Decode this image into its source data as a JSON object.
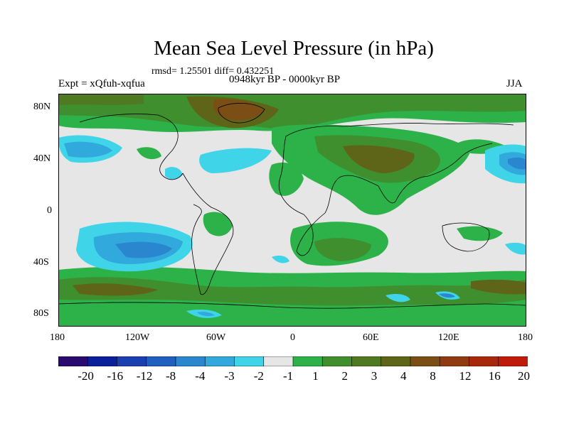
{
  "title": "Mean Sea Level Pressure (in hPa)",
  "stats": "rmsd= 1.25501 diff= 0.432251",
  "left_label": "Expt = xQfuh-xqfua",
  "center_label": "0948kyr BP - 0000kyr BP",
  "right_label": "JJA",
  "lat_ticks": [
    "80N",
    "40N",
    "0",
    "40S",
    "80S"
  ],
  "lon_ticks": [
    "180",
    "120W",
    "60W",
    "0",
    "60E",
    "120E",
    "180"
  ],
  "colorbar": {
    "colors": [
      "#2a0a6e",
      "#0c1f9a",
      "#1a3fb0",
      "#1e5fc0",
      "#2a86cf",
      "#32a9dd",
      "#40d4e8",
      "#e6e6e6",
      "#2db24a",
      "#3f8f2e",
      "#4f7a22",
      "#5e6418",
      "#7a4e14",
      "#8f3a10",
      "#a8280c",
      "#c01a0a"
    ],
    "labels": [
      "-20",
      "-16",
      "-12",
      "-8",
      "-4",
      "-3",
      "-2",
      "-1",
      "1",
      "2",
      "3",
      "4",
      "8",
      "12",
      "16",
      "20"
    ]
  }
}
